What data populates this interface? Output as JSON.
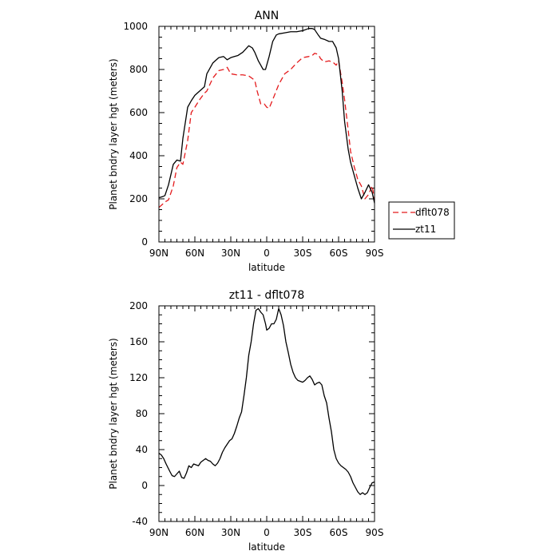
{
  "chart_data": [
    {
      "type": "line",
      "title": "ANN",
      "xlabel": "latitude",
      "ylabel": "Planet bndry layer hgt (meters)",
      "xlim": [
        90,
        -90
      ],
      "ylim": [
        0,
        1000
      ],
      "xticks": [
        {
          "value": 90,
          "label": "90N"
        },
        {
          "value": 60,
          "label": "60N"
        },
        {
          "value": 30,
          "label": "30N"
        },
        {
          "value": 0,
          "label": "0"
        },
        {
          "value": -30,
          "label": "30S"
        },
        {
          "value": -60,
          "label": "60S"
        },
        {
          "value": -90,
          "label": "90S"
        }
      ],
      "yticks": [
        0,
        200,
        400,
        600,
        800,
        1000
      ],
      "legend": {
        "placement": "right",
        "entries": [
          "dflt078",
          "zt11"
        ]
      },
      "series": [
        {
          "name": "dflt078",
          "color": "#e41a1c",
          "dash": "dashed",
          "x": [
            90,
            85,
            82,
            78,
            75,
            72,
            70,
            66,
            63,
            60,
            56,
            52,
            50,
            45,
            40,
            36,
            33,
            30,
            25,
            20,
            15,
            10,
            8,
            5,
            2,
            0,
            -2,
            -5,
            -10,
            -15,
            -20,
            -25,
            -30,
            -35,
            -38,
            -40,
            -43,
            -45,
            -48,
            -52,
            -55,
            -58,
            -60,
            -63,
            -65,
            -68,
            -70,
            -73,
            -76,
            -79,
            -82,
            -85,
            -88,
            -90
          ],
          "y": [
            160,
            185,
            195,
            260,
            345,
            370,
            360,
            470,
            600,
            625,
            660,
            690,
            700,
            760,
            795,
            800,
            810,
            780,
            775,
            775,
            770,
            750,
            700,
            640,
            640,
            625,
            620,
            660,
            730,
            780,
            800,
            830,
            855,
            860,
            865,
            875,
            870,
            850,
            835,
            840,
            835,
            820,
            840,
            740,
            660,
            520,
            420,
            350,
            290,
            260,
            200,
            220,
            260,
            195
          ]
        },
        {
          "name": "zt11",
          "color": "#000000",
          "dash": "solid",
          "x": [
            90,
            87,
            85,
            82,
            78,
            75,
            72,
            70,
            66,
            63,
            60,
            56,
            52,
            50,
            45,
            40,
            36,
            33,
            30,
            27,
            24,
            20,
            15,
            12,
            10,
            7,
            5,
            3,
            1,
            0,
            -2,
            -5,
            -8,
            -10,
            -15,
            -20,
            -25,
            -30,
            -35,
            -38,
            -40,
            -43,
            -45,
            -48,
            -52,
            -55,
            -58,
            -60,
            -63,
            -65,
            -68,
            -70,
            -73,
            -76,
            -79,
            -82,
            -85,
            -88,
            -90
          ],
          "y": [
            205,
            210,
            215,
            265,
            360,
            380,
            375,
            480,
            625,
            655,
            680,
            700,
            720,
            780,
            830,
            855,
            860,
            845,
            855,
            860,
            865,
            880,
            910,
            900,
            880,
            840,
            820,
            800,
            800,
            820,
            860,
            930,
            960,
            965,
            970,
            975,
            975,
            980,
            990,
            990,
            985,
            960,
            945,
            940,
            930,
            930,
            900,
            850,
            700,
            560,
            430,
            370,
            310,
            250,
            200,
            230,
            265,
            230,
            180
          ]
        }
      ]
    },
    {
      "type": "line",
      "title": "zt11 - dflt078",
      "xlabel": "latitude",
      "ylabel": "Planet bndry layer hgt (meters)",
      "xlim": [
        90,
        -90
      ],
      "ylim": [
        -40,
        200
      ],
      "xticks": [
        {
          "value": 90,
          "label": "90N"
        },
        {
          "value": 60,
          "label": "60N"
        },
        {
          "value": 30,
          "label": "30N"
        },
        {
          "value": 0,
          "label": "0"
        },
        {
          "value": -30,
          "label": "30S"
        },
        {
          "value": -60,
          "label": "60S"
        },
        {
          "value": -90,
          "label": "90S"
        }
      ],
      "yticks": [
        -40,
        0,
        40,
        80,
        120,
        160,
        200
      ],
      "series": [
        {
          "color": "#000000",
          "dash": "solid",
          "x": [
            90,
            88,
            86,
            84,
            81,
            79,
            77,
            75,
            73,
            71,
            69,
            67,
            65,
            63,
            61,
            59,
            57,
            55,
            53,
            51,
            49,
            47,
            45,
            43,
            41,
            39,
            37,
            35,
            33,
            31,
            29,
            27,
            25,
            23,
            21,
            19,
            17,
            15,
            13,
            11,
            9,
            7,
            5,
            3,
            1,
            0,
            -2,
            -4,
            -6,
            -8,
            -10,
            -12,
            -14,
            -16,
            -18,
            -20,
            -22,
            -24,
            -26,
            -28,
            -30,
            -32,
            -34,
            -36,
            -38,
            -40,
            -42,
            -44,
            -46,
            -48,
            -50,
            -52,
            -54,
            -56,
            -58,
            -60,
            -62,
            -64,
            -66,
            -68,
            -70,
            -72,
            -74,
            -76,
            -78,
            -80,
            -82,
            -84,
            -86,
            -88,
            -90
          ],
          "y": [
            36,
            34,
            30,
            24,
            16,
            11,
            10,
            13,
            16,
            9,
            8,
            14,
            22,
            20,
            24,
            23,
            22,
            26,
            28,
            30,
            28,
            27,
            24,
            22,
            25,
            30,
            37,
            42,
            46,
            50,
            52,
            58,
            66,
            75,
            82,
            100,
            120,
            145,
            160,
            180,
            195,
            197,
            193,
            190,
            180,
            173,
            175,
            180,
            180,
            185,
            197,
            190,
            178,
            160,
            148,
            135,
            126,
            120,
            117,
            116,
            115,
            117,
            120,
            122,
            118,
            112,
            114,
            115,
            112,
            100,
            92,
            75,
            60,
            40,
            30,
            25,
            22,
            20,
            18,
            15,
            10,
            3,
            -2,
            -7,
            -10,
            -8,
            -10,
            -8,
            -2,
            3,
            4
          ]
        }
      ]
    }
  ]
}
